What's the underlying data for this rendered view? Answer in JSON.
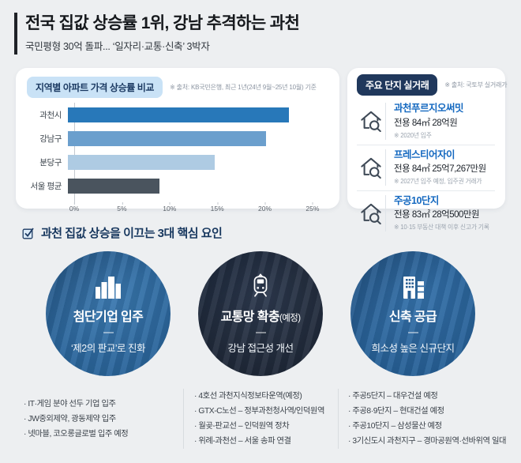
{
  "header": {
    "title": "전국 집값 상승률 1위, 강남 추격하는 과천",
    "subtitle": "국민평형 30억 돌파... ‘일자리·교통·신축’ 3박자"
  },
  "chart_panel": {
    "badge": "지역별 아파트 가격 상승률 비교",
    "source": "※ 출처: KB국민은행, 최근 1년(24년 9월~25년 10월) 기준"
  },
  "chart_data": {
    "type": "bar",
    "orientation": "horizontal",
    "title": "지역별 아파트 가격 상승률 비교",
    "categories": [
      "과천시",
      "강남구",
      "분당구",
      "서울 평균"
    ],
    "values": [
      22.6,
      20.3,
      15.0,
      9.4
    ],
    "unit": "%",
    "colors": [
      "#2878b9",
      "#6b9fcd",
      "#aecbe3",
      "#4a545e"
    ],
    "x_ticks": [
      "0%",
      "5%",
      "10%",
      "15%",
      "20%",
      "25%"
    ],
    "x_tick_values": [
      0,
      5,
      10,
      15,
      20,
      25
    ],
    "x_max": 26.5,
    "grid": false,
    "legend": "none"
  },
  "transactions": {
    "badge": "주요 단지 실거래",
    "source": "※ 출처: 국토부 실거래가",
    "items": [
      {
        "name": "과천푸르지오써밋",
        "detail": "전용 84㎡ 28억원",
        "note": "※ 2020년 입주"
      },
      {
        "name": "프레스티어자이",
        "detail": "전용 84㎡ 25억7,267만원",
        "note": "※ 2027년 입주 예정, 입주권 거래가"
      },
      {
        "name": "주공10단지",
        "detail": "전용 83㎡ 28억500만원",
        "note": "※ 10·15 부동산 대책 이후 신고가 기록"
      }
    ]
  },
  "factors_section": {
    "title": "과천 집값 상승을 이끄는 3대 핵심 요인",
    "factors": [
      {
        "icon": "buildings-icon",
        "title": "첨단기업 입주",
        "title_suffix": "",
        "subtitle": "‘제2의 판교’로 진화",
        "bg1": "#3c7ab1",
        "bg2": "#255e93",
        "bullets": [
          "IT·게임 분야 선두 기업 입주",
          "JW중외제약, 광동제약 입주",
          "넷마블, 코오롱글로벌 입주 예정"
        ]
      },
      {
        "icon": "train-icon",
        "title": "교통망 확충",
        "title_suffix": "(예정)",
        "subtitle": "강남 접근성 개선",
        "bg1": "#2e3a4f",
        "bg2": "#1b2432",
        "bullets": [
          "4호선 과천지식정보타운역(예정)",
          "GTX-C노선 – 정부과천청사역/인덕원역",
          "월곶-판교선 – 인덕원역 정차",
          "위례-과천선 – 서울 송파 연결"
        ]
      },
      {
        "icon": "apartment-icon",
        "title": "신축 공급",
        "title_suffix": "",
        "subtitle": "희소성 높은 신규단지",
        "bg1": "#3572ab",
        "bg2": "#245b90",
        "bullets": [
          "주공5단지 – 대우건설 예정",
          "주공8·9단지 – 현대건설 예정",
          "주공10단지 – 삼성물산 예정",
          "3기신도시 과천지구 – 경마공원역·선바위역 일대"
        ]
      }
    ]
  }
}
